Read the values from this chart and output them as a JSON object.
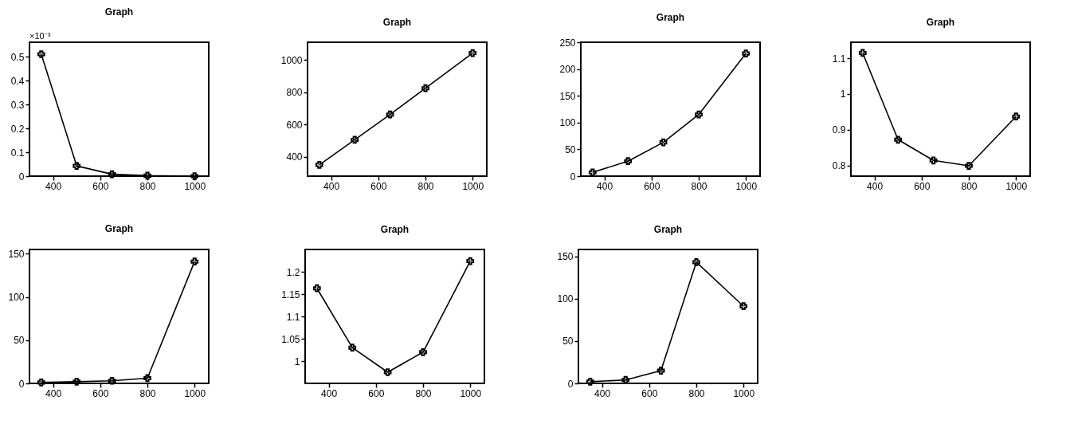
{
  "chart_data": [
    {
      "type": "line",
      "title": "Graph",
      "annotations": [
        "×10⁻³"
      ],
      "x": [
        350,
        500,
        650,
        800,
        1000
      ],
      "values": [
        0.51,
        0.043,
        0.008,
        0.002,
        0.0
      ],
      "xlim": [
        300,
        1060
      ],
      "xticks": [
        400,
        600,
        800,
        1000
      ],
      "ylim": [
        0,
        0.56
      ],
      "yticks": [
        0,
        0.1,
        0.2,
        0.3,
        0.4,
        0.5
      ],
      "marker": "cross",
      "color": "#000000",
      "grid": false
    },
    {
      "type": "line",
      "title": "Graph",
      "x": [
        350,
        500,
        650,
        800,
        1000
      ],
      "values": [
        350,
        505,
        662,
        825,
        1043
      ],
      "xlim": [
        300,
        1060
      ],
      "xticks": [
        400,
        600,
        800,
        1000
      ],
      "ylim": [
        280,
        1110
      ],
      "yticks": [
        400,
        600,
        800,
        1000
      ],
      "marker": "cross",
      "color": "#000000",
      "grid": false
    },
    {
      "type": "line",
      "title": "Graph",
      "x": [
        350,
        500,
        650,
        800,
        1000
      ],
      "values": [
        7,
        28,
        63,
        115,
        229
      ],
      "xlim": [
        300,
        1060
      ],
      "xticks": [
        400,
        600,
        800,
        1000
      ],
      "ylim": [
        0,
        250
      ],
      "yticks": [
        0,
        50,
        100,
        150,
        200,
        250
      ],
      "marker": "cross",
      "color": "#000000",
      "grid": false
    },
    {
      "type": "line",
      "title": "Graph",
      "x": [
        350,
        500,
        650,
        800,
        1000
      ],
      "values": [
        1.115,
        0.872,
        0.814,
        0.799,
        0.937
      ],
      "xlim": [
        300,
        1060
      ],
      "xticks": [
        400,
        600,
        800,
        1000
      ],
      "ylim": [
        0.77,
        1.145
      ],
      "yticks": [
        0.8,
        0.9,
        1,
        1.1
      ],
      "marker": "cross",
      "color": "#000000",
      "grid": false
    },
    {
      "type": "line",
      "title": "Graph",
      "x": [
        350,
        500,
        650,
        800,
        1000
      ],
      "values": [
        1,
        2,
        3,
        6,
        141
      ],
      "xlim": [
        300,
        1060
      ],
      "xticks": [
        400,
        600,
        800,
        1000
      ],
      "ylim": [
        0,
        155
      ],
      "yticks": [
        0,
        50,
        100,
        150
      ],
      "marker": "cross",
      "color": "#000000",
      "grid": false
    },
    {
      "type": "line",
      "title": "Graph",
      "x": [
        350,
        500,
        650,
        800,
        1000
      ],
      "values": [
        1.163,
        1.03,
        0.975,
        1.02,
        1.224
      ],
      "xlim": [
        300,
        1060
      ],
      "xticks": [
        400,
        600,
        800,
        1000
      ],
      "ylim": [
        0.95,
        1.25
      ],
      "yticks": [
        1,
        1.05,
        1.1,
        1.15,
        1.2
      ],
      "marker": "cross",
      "color": "#000000",
      "grid": false
    },
    {
      "type": "line",
      "title": "Graph",
      "x": [
        350,
        500,
        650,
        800,
        1000
      ],
      "values": [
        2,
        4,
        15,
        143,
        91
      ],
      "xlim": [
        300,
        1060
      ],
      "xticks": [
        400,
        600,
        800,
        1000
      ],
      "ylim": [
        0,
        158
      ],
      "yticks": [
        0,
        50,
        100,
        150
      ],
      "marker": "cross",
      "color": "#000000",
      "grid": false
    }
  ]
}
